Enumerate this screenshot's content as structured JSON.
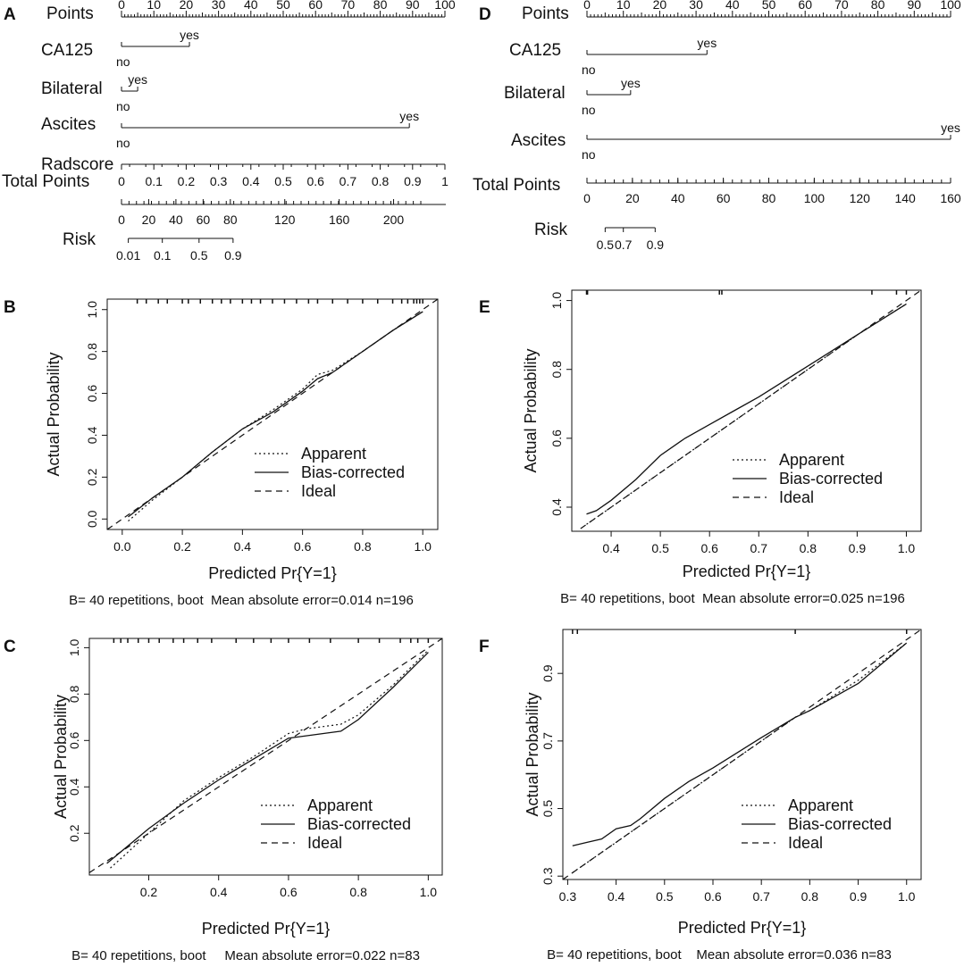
{
  "nomograms": [
    {
      "letter": "A",
      "points": {
        "label": "Points",
        "ticks": [
          0,
          10,
          20,
          30,
          40,
          50,
          60,
          70,
          80,
          90,
          100
        ]
      },
      "variables": [
        {
          "name": "CA125",
          "levels": [
            {
              "label": "no",
              "points": 0
            },
            {
              "label": "yes",
              "points": 21
            }
          ]
        },
        {
          "name": "Bilateral",
          "levels": [
            {
              "label": "no",
              "points": 0
            },
            {
              "label": "yes",
              "points": 5
            }
          ]
        },
        {
          "name": "Ascites",
          "levels": [
            {
              "label": "no",
              "points": 0
            },
            {
              "label": "yes",
              "points": 89
            }
          ]
        },
        {
          "name": "Radscore",
          "continuous": true,
          "range": [
            0,
            1
          ],
          "ticks": [
            "0",
            "0.1",
            "0.2",
            "0.3",
            "0.4",
            "0.5",
            "0.6",
            "0.7",
            "0.8",
            "0.9",
            "1"
          ]
        }
      ],
      "total_points": {
        "label": "Total Points",
        "max": 220,
        "ticks": [
          0,
          20,
          40,
          60,
          80,
          120,
          160,
          200
        ]
      },
      "risk": {
        "label": "Risk",
        "ticks": [
          {
            "label": "0.01",
            "total": 5
          },
          {
            "label": "0.1",
            "total": 30
          },
          {
            "label": "0.5",
            "total": 57
          },
          {
            "label": "0.9",
            "total": 82
          }
        ]
      }
    },
    {
      "letter": "D",
      "points": {
        "label": "Points",
        "ticks": [
          0,
          10,
          20,
          30,
          40,
          50,
          60,
          70,
          80,
          90,
          100
        ]
      },
      "variables": [
        {
          "name": "CA125",
          "levels": [
            {
              "label": "no",
              "points": 0
            },
            {
              "label": "yes",
              "points": 33
            }
          ]
        },
        {
          "name": "Bilateral",
          "levels": [
            {
              "label": "no",
              "points": 0
            },
            {
              "label": "yes",
              "points": 12
            }
          ]
        },
        {
          "name": "Ascites",
          "levels": [
            {
              "label": "no",
              "points": 0
            },
            {
              "label": "yes",
              "points": 100
            }
          ]
        }
      ],
      "total_points": {
        "label": "Total Points",
        "max": 160,
        "ticks": [
          0,
          20,
          40,
          60,
          80,
          100,
          120,
          140,
          160
        ]
      },
      "risk": {
        "label": "Risk",
        "ticks": [
          {
            "label": "0.5",
            "total": 8
          },
          {
            "label": "0.7",
            "total": 16
          },
          {
            "label": "0.9",
            "total": 30
          }
        ]
      }
    }
  ],
  "chart_data": [
    {
      "letter": "B",
      "type": "line",
      "xlabel": "Predicted Pr{Y=1}",
      "ylabel": "Actual Probability",
      "xlim": [
        -0.05,
        1.05
      ],
      "ylim": [
        -0.05,
        1.05
      ],
      "xticks": [
        "0.0",
        "0.2",
        "0.4",
        "0.6",
        "0.8",
        "1.0"
      ],
      "yticks": [
        "0.0",
        "0.2",
        "0.4",
        "0.6",
        "0.8",
        "1.0"
      ],
      "series": [
        {
          "name": "Apparent",
          "style": "dotted",
          "x": [
            0.02,
            0.1,
            0.2,
            0.3,
            0.4,
            0.5,
            0.6,
            0.65,
            0.7,
            0.8,
            0.9,
            1.0
          ],
          "y": [
            -0.01,
            0.09,
            0.2,
            0.32,
            0.43,
            0.52,
            0.62,
            0.69,
            0.71,
            0.8,
            0.9,
            0.99
          ]
        },
        {
          "name": "Bias-corrected",
          "style": "solid",
          "x": [
            0.02,
            0.1,
            0.2,
            0.3,
            0.4,
            0.5,
            0.6,
            0.65,
            0.7,
            0.8,
            0.9,
            1.0
          ],
          "y": [
            0.01,
            0.1,
            0.2,
            0.32,
            0.43,
            0.51,
            0.61,
            0.67,
            0.7,
            0.8,
            0.9,
            0.99
          ]
        },
        {
          "name": "Ideal",
          "style": "dashed",
          "x": [
            -0.05,
            1.05
          ],
          "y": [
            -0.05,
            1.05
          ]
        }
      ],
      "rug": [
        0.05,
        0.08,
        0.12,
        0.15,
        0.2,
        0.22,
        0.26,
        0.3,
        0.33,
        0.36,
        0.4,
        0.43,
        0.46,
        0.5,
        0.54,
        0.58,
        0.62,
        0.65,
        0.7,
        0.75,
        0.8,
        0.85,
        0.9,
        0.93,
        0.95,
        0.97,
        0.98,
        0.99,
        1.0
      ],
      "legend": [
        "Apparent",
        "Bias-corrected",
        "Ideal"
      ],
      "caption": "B= 40 repetitions, boot  Mean absolute error=0.014 n=196"
    },
    {
      "letter": "E",
      "type": "line",
      "xlabel": "Predicted Pr{Y=1}",
      "ylabel": "Actual Probability",
      "xlim": [
        0.32,
        1.03
      ],
      "ylim": [
        0.33,
        1.03
      ],
      "xticks": [
        "0.4",
        "0.5",
        "0.6",
        "0.7",
        "0.8",
        "0.9",
        "1.0"
      ],
      "yticks": [
        "0.4",
        "0.6",
        "0.8",
        "1.0"
      ],
      "series": [
        {
          "name": "Apparent",
          "style": "dotted",
          "x": [
            0.35,
            0.4,
            0.45,
            0.5,
            0.55,
            0.6,
            0.7,
            0.8,
            0.9,
            1.0
          ],
          "y": [
            0.35,
            0.4,
            0.45,
            0.5,
            0.55,
            0.6,
            0.7,
            0.8,
            0.9,
            0.99
          ]
        },
        {
          "name": "Bias-corrected",
          "style": "solid",
          "x": [
            0.35,
            0.37,
            0.4,
            0.45,
            0.5,
            0.55,
            0.6,
            0.65,
            0.7,
            0.8,
            0.9,
            1.0
          ],
          "y": [
            0.38,
            0.39,
            0.42,
            0.48,
            0.55,
            0.6,
            0.64,
            0.68,
            0.72,
            0.81,
            0.9,
            0.99
          ]
        },
        {
          "name": "Ideal",
          "style": "dashed",
          "x": [
            0.32,
            1.03
          ],
          "y": [
            0.32,
            1.03
          ]
        }
      ],
      "rug": [
        0.35,
        0.352,
        0.62,
        0.625,
        0.93,
        0.98,
        1.0
      ],
      "legend": [
        "Apparent",
        "Bias-corrected",
        "Ideal"
      ],
      "caption": "B= 40 repetitions, boot  Mean absolute error=0.025 n=196"
    },
    {
      "letter": "C",
      "type": "line",
      "xlabel": "Predicted Pr{Y=1}",
      "ylabel": "Actual Probability",
      "xlim": [
        0.03,
        1.04
      ],
      "ylim": [
        0.02,
        1.04
      ],
      "xticks": [
        "0.2",
        "0.4",
        "0.6",
        "0.8",
        "1.0"
      ],
      "yticks": [
        "0.2",
        "0.4",
        "0.6",
        "0.8",
        "1.0"
      ],
      "series": [
        {
          "name": "Apparent",
          "style": "dotted",
          "x": [
            0.09,
            0.2,
            0.3,
            0.4,
            0.5,
            0.6,
            0.65,
            0.7,
            0.75,
            0.8,
            0.9,
            1.0
          ],
          "y": [
            0.05,
            0.2,
            0.34,
            0.44,
            0.53,
            0.63,
            0.65,
            0.66,
            0.67,
            0.71,
            0.84,
            0.99
          ]
        },
        {
          "name": "Bias-corrected",
          "style": "solid",
          "x": [
            0.08,
            0.2,
            0.3,
            0.4,
            0.5,
            0.6,
            0.65,
            0.7,
            0.75,
            0.8,
            0.9,
            1.0
          ],
          "y": [
            0.07,
            0.22,
            0.33,
            0.43,
            0.52,
            0.61,
            0.62,
            0.63,
            0.64,
            0.69,
            0.83,
            0.98
          ]
        },
        {
          "name": "Ideal",
          "style": "dashed",
          "x": [
            0.03,
            1.04
          ],
          "y": [
            0.03,
            1.04
          ]
        }
      ],
      "rug": [
        0.1,
        0.12,
        0.14,
        0.17,
        0.2,
        0.23,
        0.27,
        0.3,
        0.34,
        0.38,
        0.45,
        0.5,
        0.55,
        0.6,
        0.66,
        0.72,
        0.8,
        0.86,
        0.92,
        0.95,
        0.97,
        1.0
      ],
      "legend": [
        "Apparent",
        "Bias-corrected",
        "Ideal"
      ],
      "caption": "B= 40 repetitions, boot     Mean absolute error=0.022 n=83"
    },
    {
      "letter": "F",
      "type": "line",
      "xlabel": "Predicted Pr{Y=1}",
      "ylabel": "Actual Probability",
      "xlim": [
        0.29,
        1.03
      ],
      "ylim": [
        0.29,
        1.03
      ],
      "xticks": [
        "0.3",
        "0.4",
        "0.5",
        "0.6",
        "0.7",
        "0.8",
        "0.9",
        "1.0"
      ],
      "yticks": [
        "0.3",
        "0.5",
        "0.7",
        "0.9"
      ],
      "series": [
        {
          "name": "Apparent",
          "style": "dotted",
          "x": [
            0.31,
            0.35,
            0.4,
            0.5,
            0.6,
            0.7,
            0.77,
            0.8,
            0.9,
            1.0
          ],
          "y": [
            0.31,
            0.35,
            0.4,
            0.5,
            0.6,
            0.7,
            0.77,
            0.79,
            0.88,
            0.99
          ]
        },
        {
          "name": "Bias-corrected",
          "style": "solid",
          "x": [
            0.31,
            0.34,
            0.37,
            0.4,
            0.43,
            0.45,
            0.5,
            0.55,
            0.6,
            0.7,
            0.77,
            0.8,
            0.9,
            1.0
          ],
          "y": [
            0.39,
            0.4,
            0.41,
            0.44,
            0.45,
            0.47,
            0.53,
            0.58,
            0.62,
            0.71,
            0.77,
            0.79,
            0.87,
            0.99
          ]
        },
        {
          "name": "Ideal",
          "style": "dashed",
          "x": [
            0.29,
            1.03
          ],
          "y": [
            0.29,
            1.03
          ]
        }
      ],
      "rug": [
        0.31,
        0.32,
        0.77,
        1.0
      ],
      "legend": [
        "Apparent",
        "Bias-corrected",
        "Ideal"
      ],
      "caption": "B= 40 repetitions, boot    Mean absolute error=0.036 n=83"
    }
  ]
}
